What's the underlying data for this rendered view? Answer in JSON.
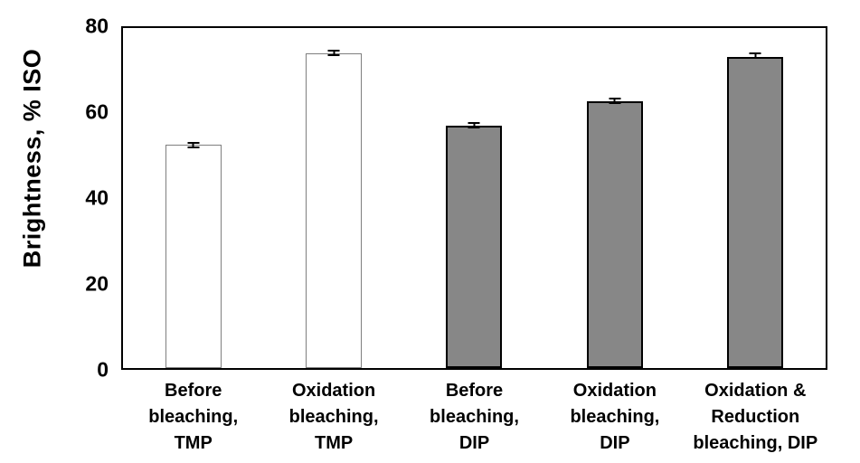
{
  "chart_data": {
    "type": "bar",
    "title": "",
    "xlabel": "",
    "ylabel": "Brightness, % ISO",
    "ylim": [
      0,
      80
    ],
    "yticks": [
      0,
      20,
      40,
      60,
      80
    ],
    "grid": false,
    "legend_position": "none",
    "categories": [
      "Before bleaching, TMP",
      "Oxidation bleaching, TMP",
      "Before bleaching, DIP",
      "Oxidation bleaching, DIP",
      "Oxidation & Reduction bleaching, DIP"
    ],
    "category_lines": [
      [
        "Before",
        "bleaching,",
        "TMP"
      ],
      [
        "Oxidation",
        "bleaching,",
        "TMP"
      ],
      [
        "Before",
        "bleaching,",
        "DIP"
      ],
      [
        "Oxidation",
        "bleaching,",
        "DIP"
      ],
      [
        "Oxidation &",
        "Reduction",
        "bleaching, DIP"
      ]
    ],
    "series": [
      {
        "name": "Brightness",
        "values": [
          52.5,
          74.0,
          57.0,
          62.8,
          73.3
        ],
        "error_bars": [
          0.8,
          0.5,
          0.7,
          0.7,
          0.6
        ]
      }
    ],
    "bar_styles": [
      {
        "fill": "#ffffff",
        "stroke": "#7f7f7f",
        "stroke_width": 1.5
      },
      {
        "fill": "#ffffff",
        "stroke": "#7f7f7f",
        "stroke_width": 1.5
      },
      {
        "fill": "#878787",
        "stroke": "#000000",
        "stroke_width": 2
      },
      {
        "fill": "#878787",
        "stroke": "#000000",
        "stroke_width": 2
      },
      {
        "fill": "#878787",
        "stroke": "#000000",
        "stroke_width": 2
      }
    ],
    "colors": {
      "axis": "#000000",
      "text": "#000000",
      "errorbar": "#000000",
      "background": "#ffffff"
    }
  }
}
